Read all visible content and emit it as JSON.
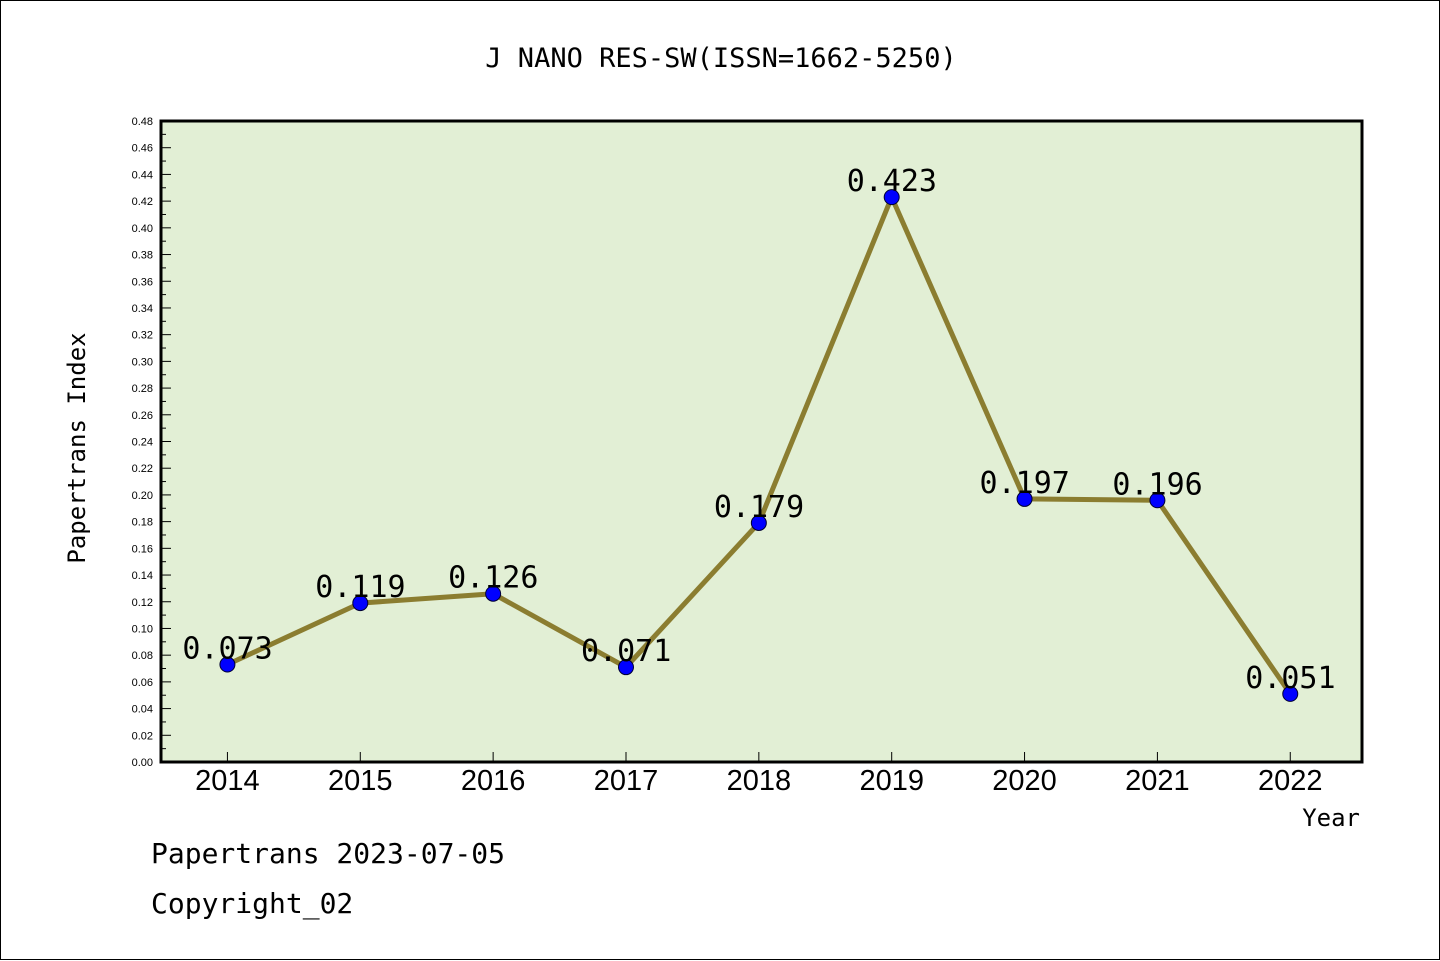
{
  "chart_data": {
    "type": "line",
    "title": "J NANO RES-SW(ISSN=1662-5250)",
    "xlabel": "Year",
    "ylabel": "Papertrans Index",
    "categories": [
      "2014",
      "2015",
      "2016",
      "2017",
      "2018",
      "2019",
      "2020",
      "2021",
      "2022"
    ],
    "values": [
      0.073,
      0.119,
      0.126,
      0.071,
      0.179,
      0.423,
      0.197,
      0.196,
      0.051
    ],
    "data_labels": [
      "0.073",
      "0.119",
      "0.126",
      "0.071",
      "0.179",
      "0.423",
      "0.197",
      "0.196",
      "0.051"
    ],
    "ylim": [
      0,
      0.48
    ],
    "yticks": [
      "0.00",
      "0.02",
      "0.04",
      "0.06",
      "0.08",
      "0.10",
      "0.12",
      "0.14",
      "0.16",
      "0.18",
      "0.20",
      "0.22",
      "0.24",
      "0.26",
      "0.28",
      "0.30",
      "0.32",
      "0.34",
      "0.36",
      "0.38",
      "0.40",
      "0.42",
      "0.44",
      "0.46",
      "0.48"
    ],
    "grid": false,
    "legend": "none",
    "colors": {
      "plot_background": "#e2efd5",
      "line": "#8b7d30",
      "marker": "#0000ff"
    }
  },
  "footer": {
    "line1": "Papertrans 2023-07-05",
    "line2": "Copyright_02"
  }
}
